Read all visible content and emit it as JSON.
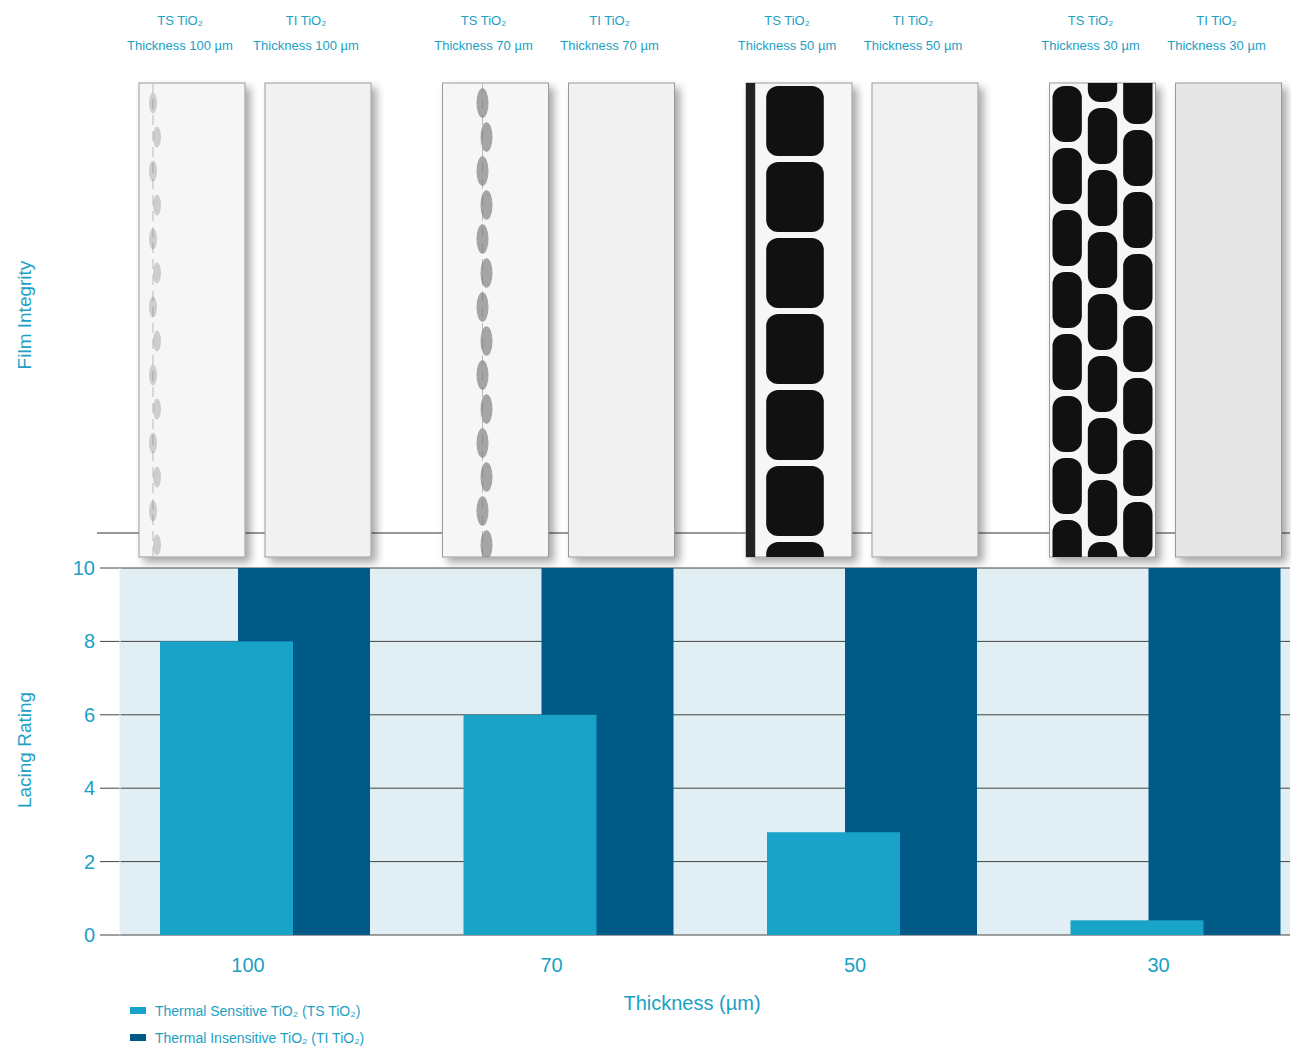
{
  "chart_data": {
    "type": "bar",
    "categories": [
      "100",
      "70",
      "50",
      "30"
    ],
    "series": [
      {
        "name": "Thermal Sensitive TiO₂ (TS TiO₂)",
        "color": "#1aa3c8",
        "values": [
          8,
          6,
          2.8,
          0.4
        ]
      },
      {
        "name": "Thermal Insensitive TiO₂  (TI TiO₂)",
        "color": "#005a87",
        "values": [
          10,
          10,
          10,
          10
        ]
      }
    ],
    "x_label": "Thickness (µm)",
    "y_label": "Lacing Rating",
    "ylim": [
      0,
      10
    ],
    "yticks": [
      0,
      2,
      4,
      6,
      8,
      10
    ],
    "grid": true,
    "legend": "bottom-left",
    "film_integrity": {
      "axis_label": "Film Integrity",
      "strips": [
        [
          [
            "TS TiO₂",
            "Thickness 100 µm"
          ],
          [
            "TI TiO₂",
            "Thickness 100 µm"
          ]
        ],
        [
          [
            "TS TiO₂",
            "Thickness 70 µm"
          ],
          [
            "TI TiO₂",
            "Thickness 70 µm"
          ]
        ],
        [
          [
            "TS TiO₂",
            "Thickness 50 µm"
          ],
          [
            "TI TiO₂",
            "Thickness 50 µm"
          ]
        ],
        [
          [
            "TS TiO₂",
            "Thickness 30 µm"
          ],
          [
            "TI TiO₂",
            "Thickness 30 µm"
          ]
        ]
      ]
    }
  }
}
